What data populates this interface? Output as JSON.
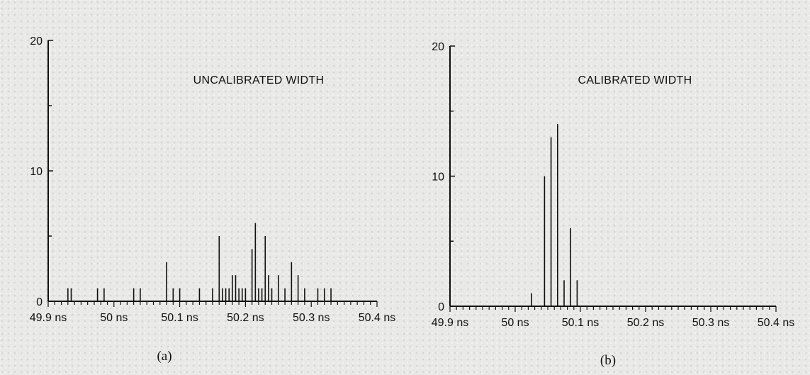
{
  "chart_data": [
    {
      "type": "bar",
      "panel_label": "(a)",
      "title": "UNCALIBRATED WIDTH",
      "xlabel": "",
      "ylabel": "",
      "ylim": [
        0,
        20
      ],
      "xlim": [
        49.9,
        50.4
      ],
      "y_ticks": [
        "0",
        "10",
        "20"
      ],
      "x_ticks": [
        "49.9 ns",
        "50 ns",
        "50.1 ns",
        "50.2 ns",
        "50.3 ns",
        "50.4 ns"
      ],
      "x": [
        49.93,
        49.935,
        49.975,
        49.985,
        50.03,
        50.04,
        50.08,
        50.09,
        50.1,
        50.13,
        50.15,
        50.16,
        50.165,
        50.17,
        50.175,
        50.18,
        50.185,
        50.19,
        50.195,
        50.2,
        50.21,
        50.215,
        50.22,
        50.225,
        50.23,
        50.235,
        50.24,
        50.25,
        50.26,
        50.27,
        50.28,
        50.29,
        50.31,
        50.32,
        50.33
      ],
      "values": [
        1,
        1,
        1,
        1,
        1,
        1,
        3,
        1,
        1,
        1,
        1,
        5,
        1,
        1,
        1,
        2,
        2,
        1,
        1,
        1,
        4,
        6,
        1,
        1,
        5,
        2,
        1,
        2,
        1,
        3,
        2,
        1,
        1,
        1,
        1
      ]
    },
    {
      "type": "bar",
      "panel_label": "(b)",
      "title": "CALIBRATED WIDTH",
      "xlabel": "",
      "ylabel": "",
      "ylim": [
        0,
        20
      ],
      "xlim": [
        49.9,
        50.4
      ],
      "y_ticks": [
        "0",
        "10",
        "20"
      ],
      "x_ticks": [
        "49.9 ns",
        "50 ns",
        "50.1 ns",
        "50.2 ns",
        "50.3 ns",
        "50.4 ns"
      ],
      "x": [
        50.025,
        50.045,
        50.055,
        50.065,
        50.075,
        50.085,
        50.095
      ],
      "values": [
        1,
        10,
        13,
        14,
        2,
        6,
        2
      ]
    }
  ]
}
